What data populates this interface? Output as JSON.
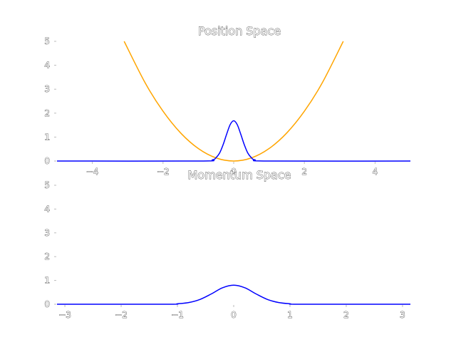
{
  "chart_data": [
    {
      "type": "line",
      "title": "Position Space",
      "xlim": [
        -5,
        5
      ],
      "ylim": [
        0,
        5
      ],
      "xticks": [
        -4,
        -2,
        0,
        2,
        4
      ],
      "xtick_labels": [
        "−4",
        "−2",
        "0",
        "2",
        "4"
      ],
      "yticks": [
        0,
        1,
        2,
        3,
        4,
        5
      ],
      "ytick_labels": [
        "0",
        "1",
        "2",
        "3",
        "4",
        "5"
      ],
      "grid": false,
      "series": [
        {
          "kind": "potential",
          "color": "#ffa500",
          "x": [
            -3.1,
            -2.5,
            -2.0,
            -1.5,
            -1.0,
            -0.5,
            0.0,
            0.5,
            1.0,
            1.5,
            2.0,
            2.5,
            3.1
          ],
          "y": [
            5.0,
            3.25,
            2.08,
            1.17,
            0.52,
            0.13,
            0.0,
            0.13,
            0.52,
            1.17,
            2.08,
            3.25,
            5.0
          ]
        },
        {
          "kind": "probability_density",
          "color": "#0000ff",
          "x": [
            -5.0,
            -1.0,
            -0.6,
            -0.5,
            -0.4,
            -0.3,
            -0.2,
            -0.1,
            0.0,
            0.1,
            0.2,
            0.3,
            0.4,
            0.5,
            0.6,
            1.0,
            5.0
          ],
          "y": [
            0.0,
            0.0,
            0.05,
            0.14,
            0.33,
            0.68,
            1.12,
            1.52,
            1.68,
            1.52,
            1.12,
            0.68,
            0.33,
            0.14,
            0.05,
            0.0,
            0.0
          ]
        }
      ]
    },
    {
      "type": "line",
      "title": "Momentum Space",
      "xlim": [
        -3.14,
        3.14
      ],
      "ylim": [
        0,
        5
      ],
      "xticks": [
        -3,
        -2,
        -1,
        0,
        1,
        2,
        3
      ],
      "xtick_labels": [
        "−3",
        "−2",
        "−1",
        "0",
        "1",
        "2",
        "3"
      ],
      "yticks": [
        0,
        1,
        2,
        3,
        4,
        5
      ],
      "ytick_labels": [
        "0",
        "1",
        "2",
        "3",
        "4",
        "5"
      ],
      "grid": false,
      "series": [
        {
          "kind": "probability_density",
          "color": "#0000ff",
          "x": [
            -3.14,
            -1.2,
            -1.0,
            -0.8,
            -0.6,
            -0.4,
            -0.2,
            0.0,
            0.2,
            0.4,
            0.6,
            0.8,
            1.0,
            1.2,
            3.14
          ],
          "y": [
            0.0,
            0.0,
            0.02,
            0.07,
            0.2,
            0.43,
            0.69,
            0.8,
            0.69,
            0.43,
            0.2,
            0.07,
            0.02,
            0.0,
            0.0
          ]
        }
      ]
    }
  ]
}
